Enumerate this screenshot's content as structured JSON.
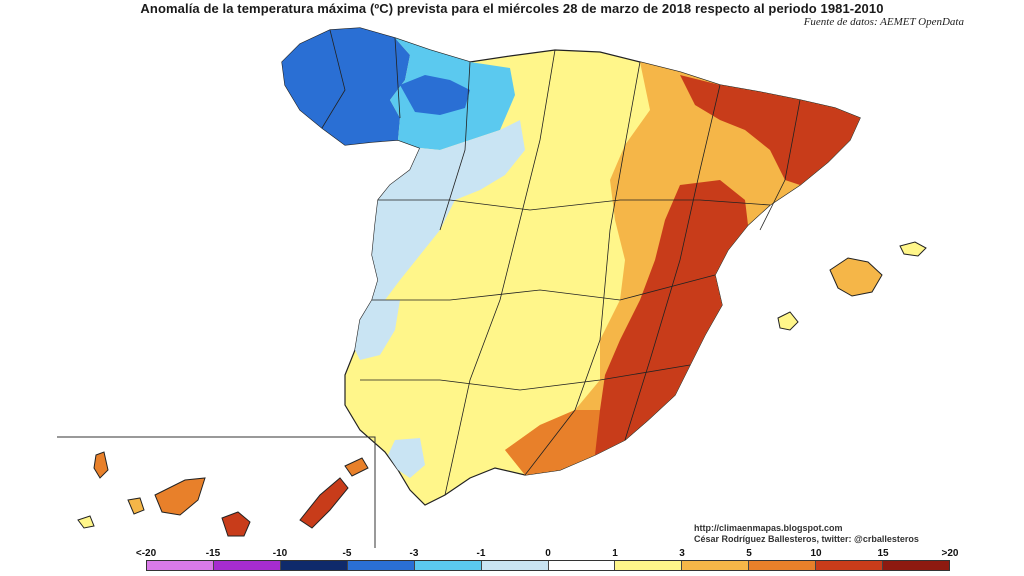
{
  "header": {
    "title": "Anomalía de la temperatura máxima (ºC) prevista para el miércoles 28 de marzo de 2018 respecto al periodo 1981-2010",
    "source": "Fuente de datos: AEMET OpenData"
  },
  "credits": {
    "url": "http://climaenmapas.blogspot.com",
    "author": "César Rodríguez Ballesteros, twitter: @crballesteros"
  },
  "legend": {
    "ticks": [
      "<-20",
      "-15",
      "-10",
      "-5",
      "-3",
      "-1",
      "0",
      "1",
      "3",
      "5",
      "10",
      "15",
      ">20"
    ],
    "colors": [
      "#d97ae8",
      "#a62ccf",
      "#0f2a6b",
      "#2a6fd4",
      "#5bc9ef",
      "#c9e4f3",
      "#ffffff",
      "#fff68a",
      "#f5b648",
      "#e8802a",
      "#c83c1a",
      "#8e1a10"
    ]
  },
  "map_colors": {
    "dark_blue": "#2a6fd4",
    "light_blue": "#5bc9ef",
    "pale_blue": "#c9e4f3",
    "pale_yellow": "#fff68a",
    "orange": "#f5b648",
    "dark_orange": "#e8802a",
    "red": "#c83c1a"
  }
}
